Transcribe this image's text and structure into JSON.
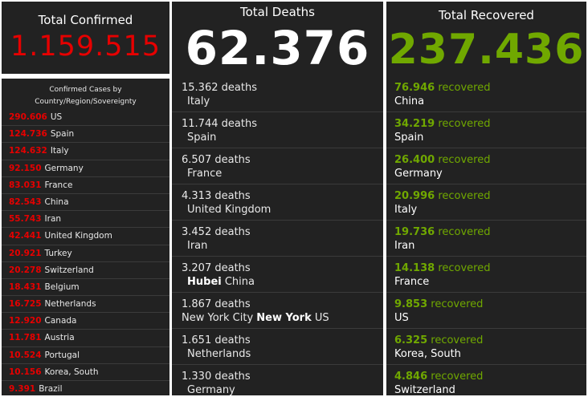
{
  "confirmed": {
    "title": "Total Confirmed",
    "value": "1.159.515",
    "list_title_line1": "Confirmed Cases by",
    "list_title_line2": "Country/Region/Sovereignty",
    "rows": [
      {
        "count": "290.606",
        "place": "US"
      },
      {
        "count": "124.736",
        "place": "Spain"
      },
      {
        "count": "124.632",
        "place": "Italy"
      },
      {
        "count": "92.150",
        "place": "Germany"
      },
      {
        "count": "83.031",
        "place": "France"
      },
      {
        "count": "82.543",
        "place": "China"
      },
      {
        "count": "55.743",
        "place": "Iran"
      },
      {
        "count": "42.441",
        "place": "United Kingdom"
      },
      {
        "count": "20.921",
        "place": "Turkey"
      },
      {
        "count": "20.278",
        "place": "Switzerland"
      },
      {
        "count": "18.431",
        "place": "Belgium"
      },
      {
        "count": "16.725",
        "place": "Netherlands"
      },
      {
        "count": "12.920",
        "place": "Canada"
      },
      {
        "count": "11.781",
        "place": "Austria"
      },
      {
        "count": "10.524",
        "place": "Portugal"
      },
      {
        "count": "10.156",
        "place": "Korea, South"
      },
      {
        "count": "9.391",
        "place": "Brazil"
      }
    ]
  },
  "deaths": {
    "title": "Total Deaths",
    "value": "62.376",
    "unit": "deaths",
    "rows": [
      {
        "count": "15.362",
        "place": "Italy"
      },
      {
        "count": "11.744",
        "place": "Spain"
      },
      {
        "count": "6.507",
        "place": "France"
      },
      {
        "count": "4.313",
        "place": "United Kingdom"
      },
      {
        "count": "3.452",
        "place": "Iran"
      },
      {
        "count": "3.207",
        "region": "Hubei",
        "place": "China"
      },
      {
        "count": "1.867",
        "prefix": "New York City",
        "region": "New York",
        "place": "US"
      },
      {
        "count": "1.651",
        "place": "Netherlands"
      },
      {
        "count": "1.330",
        "place": "Germany"
      }
    ]
  },
  "recovered": {
    "title": "Total Recovered",
    "value": "237.436",
    "unit": "recovered",
    "rows": [
      {
        "count": "76.946",
        "place": "China"
      },
      {
        "count": "34.219",
        "place": "Spain"
      },
      {
        "count": "26.400",
        "place": "Germany"
      },
      {
        "count": "20.996",
        "place": "Italy"
      },
      {
        "count": "19.736",
        "place": "Iran"
      },
      {
        "count": "14.138",
        "place": "France"
      },
      {
        "count": "9.853",
        "place": "US"
      },
      {
        "count": "6.325",
        "place": "Korea, South"
      },
      {
        "count": "4.846",
        "place": "Switzerland"
      }
    ]
  },
  "colors": {
    "panel": "#222222",
    "confirmed": "#e60000",
    "recovered": "#70a800",
    "text": "#ffffff"
  }
}
